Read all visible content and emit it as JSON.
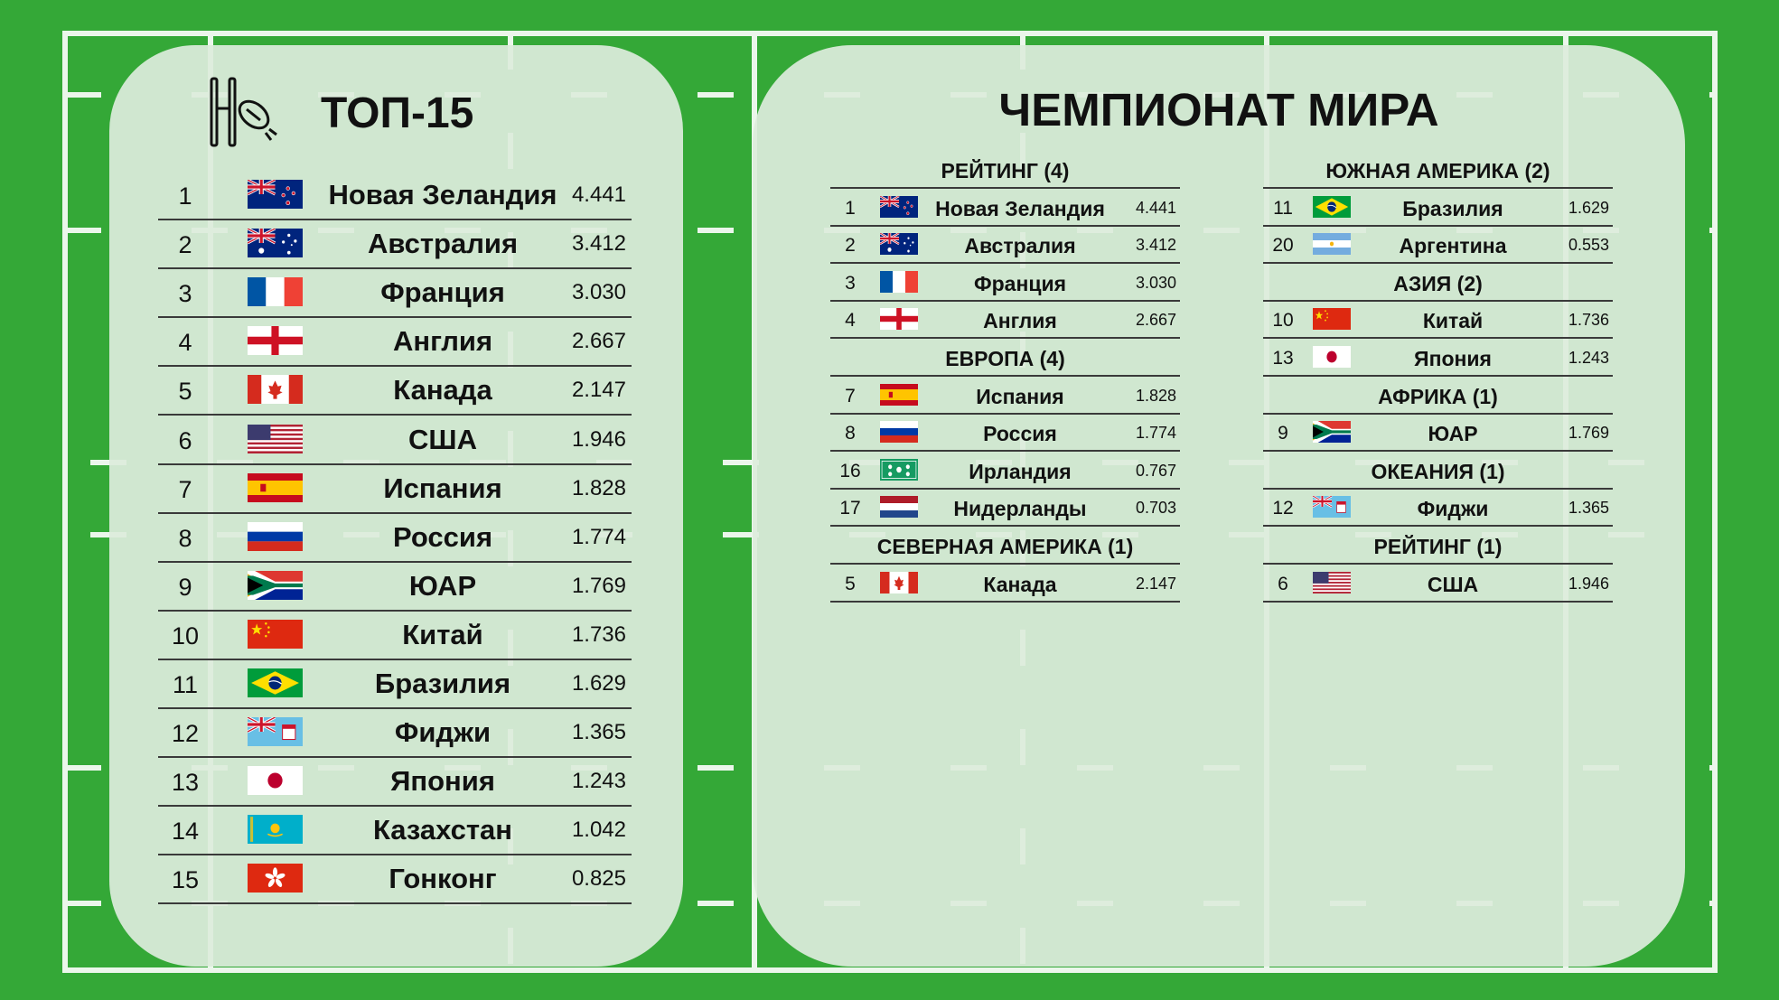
{
  "colors": {
    "grass": "#34a837",
    "panel": "#dcecdb",
    "lines": "#ffffff"
  },
  "top15": {
    "title": "ТОП-15",
    "icon": "rugby-posts-ball-icon",
    "rows": [
      {
        "rank": "1",
        "flag": "nz",
        "name": "Новая Зеландия",
        "points": "4.441"
      },
      {
        "rank": "2",
        "flag": "au",
        "name": "Австралия",
        "points": "3.412"
      },
      {
        "rank": "3",
        "flag": "fr",
        "name": "Франция",
        "points": "3.030"
      },
      {
        "rank": "4",
        "flag": "en",
        "name": "Англия",
        "points": "2.667"
      },
      {
        "rank": "5",
        "flag": "ca",
        "name": "Канада",
        "points": "2.147"
      },
      {
        "rank": "6",
        "flag": "us",
        "name": "США",
        "points": "1.946"
      },
      {
        "rank": "7",
        "flag": "es",
        "name": "Испания",
        "points": "1.828"
      },
      {
        "rank": "8",
        "flag": "ru",
        "name": "Россия",
        "points": "1.774"
      },
      {
        "rank": "9",
        "flag": "za",
        "name": "ЮАР",
        "points": "1.769"
      },
      {
        "rank": "10",
        "flag": "cn",
        "name": "Китай",
        "points": "1.736"
      },
      {
        "rank": "11",
        "flag": "br",
        "name": "Бразилия",
        "points": "1.629"
      },
      {
        "rank": "12",
        "flag": "fj",
        "name": "Фиджи",
        "points": "1.365"
      },
      {
        "rank": "13",
        "flag": "jp",
        "name": "Япония",
        "points": "1.243"
      },
      {
        "rank": "14",
        "flag": "kz",
        "name": "Казахстан",
        "points": "1.042"
      },
      {
        "rank": "15",
        "flag": "hk",
        "name": "Гонконг",
        "points": "0.825"
      }
    ]
  },
  "world_cup": {
    "title": "ЧЕМПИОНАТ МИРА",
    "left_column": [
      {
        "type": "header",
        "label": "РЕЙТИНГ (4)"
      },
      {
        "type": "row",
        "rank": "1",
        "flag": "nz",
        "name": "Новая Зеландия",
        "points": "4.441"
      },
      {
        "type": "row",
        "rank": "2",
        "flag": "au",
        "name": "Австралия",
        "points": "3.412"
      },
      {
        "type": "row",
        "rank": "3",
        "flag": "fr",
        "name": "Франция",
        "points": "3.030"
      },
      {
        "type": "row",
        "rank": "4",
        "flag": "en",
        "name": "Англия",
        "points": "2.667"
      },
      {
        "type": "header",
        "label": "ЕВРОПА (4)"
      },
      {
        "type": "row",
        "rank": "7",
        "flag": "es",
        "name": "Испания",
        "points": "1.828"
      },
      {
        "type": "row",
        "rank": "8",
        "flag": "ru",
        "name": "Россия",
        "points": "1.774"
      },
      {
        "type": "row",
        "rank": "16",
        "flag": "ie",
        "name": "Ирландия",
        "points": "0.767"
      },
      {
        "type": "row",
        "rank": "17",
        "flag": "nl",
        "name": "Нидерланды",
        "points": "0.703"
      },
      {
        "type": "header",
        "label": "СЕВЕРНАЯ АМЕРИКА (1)"
      },
      {
        "type": "row",
        "rank": "5",
        "flag": "ca",
        "name": "Канада",
        "points": "2.147"
      }
    ],
    "right_column": [
      {
        "type": "header",
        "label": "ЮЖНАЯ АМЕРИКА (2)"
      },
      {
        "type": "row",
        "rank": "11",
        "flag": "br",
        "name": "Бразилия",
        "points": "1.629"
      },
      {
        "type": "row",
        "rank": "20",
        "flag": "ar",
        "name": "Аргентина",
        "points": "0.553"
      },
      {
        "type": "header",
        "label": "АЗИЯ (2)"
      },
      {
        "type": "row",
        "rank": "10",
        "flag": "cn",
        "name": "Китай",
        "points": "1.736"
      },
      {
        "type": "row",
        "rank": "13",
        "flag": "jp",
        "name": "Япония",
        "points": "1.243"
      },
      {
        "type": "header",
        "label": "АФРИКА (1)"
      },
      {
        "type": "row",
        "rank": "9",
        "flag": "za",
        "name": "ЮАР",
        "points": "1.769"
      },
      {
        "type": "header",
        "label": "ОКЕАНИЯ (1)"
      },
      {
        "type": "row",
        "rank": "12",
        "flag": "fj",
        "name": "Фиджи",
        "points": "1.365"
      },
      {
        "type": "header",
        "label": "РЕЙТИНГ (1)"
      },
      {
        "type": "row",
        "rank": "6",
        "flag": "us",
        "name": "США",
        "points": "1.946"
      }
    ]
  }
}
